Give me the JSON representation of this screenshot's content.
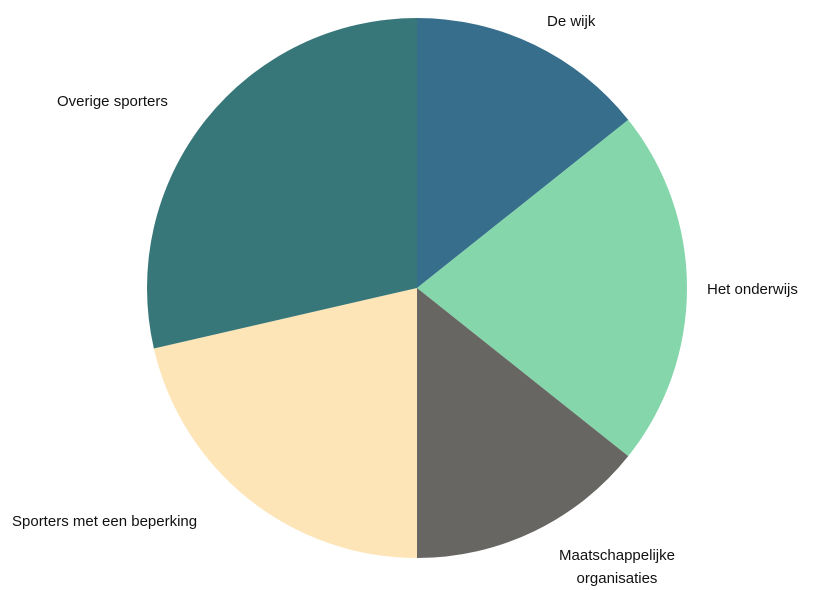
{
  "chart_data": {
    "type": "pie",
    "categories": [
      "De wijk",
      "Het onderwijs",
      "Maatschappelijke organisaties",
      "Sporters met een beperking",
      "Overige sporters"
    ],
    "values": [
      14.3,
      21.4,
      14.3,
      21.4,
      28.6
    ],
    "colors": [
      "#376e8c",
      "#86d6ab",
      "#686663",
      "#fde5b8",
      "#377779"
    ]
  }
}
